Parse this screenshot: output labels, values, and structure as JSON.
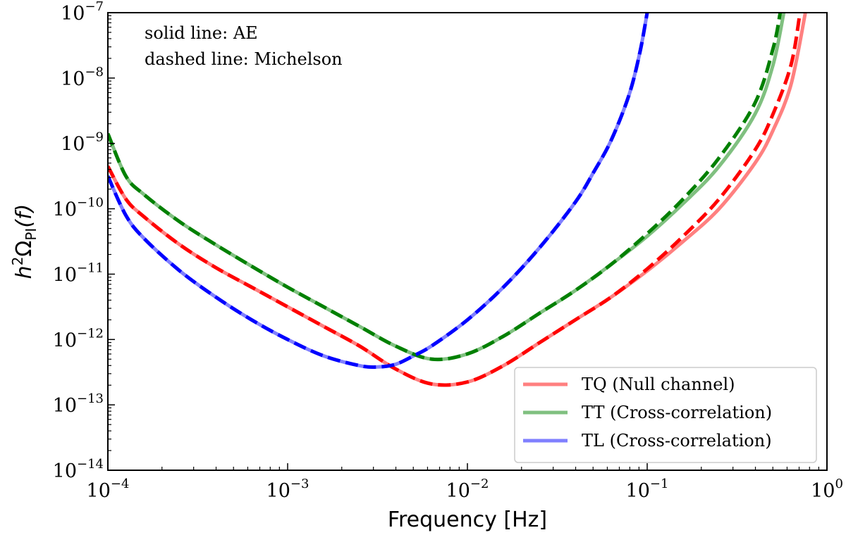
{
  "chart_data": {
    "type": "line",
    "title": "",
    "xlabel": "Frequency [Hz]",
    "ylabel": "h^2 Ω_PI(f)",
    "ylabel_parts": {
      "base": "h",
      "sup": "2",
      "omega": "Ω",
      "sub": "PI",
      "arg": "(f)"
    },
    "xscale": "log",
    "yscale": "log",
    "xlim": [
      0.0001,
      1
    ],
    "ylim": [
      1e-14,
      1e-07
    ],
    "grid": false,
    "x_ticks": [
      {
        "base": "10",
        "exp": "−4",
        "value": -4
      },
      {
        "base": "10",
        "exp": "−3",
        "value": -3
      },
      {
        "base": "10",
        "exp": "−2",
        "value": -2
      },
      {
        "base": "10",
        "exp": "−1",
        "value": -1
      },
      {
        "base": "10",
        "exp": "0",
        "value": 0
      }
    ],
    "y_ticks": [
      {
        "base": "10",
        "exp": "−7",
        "value": -7
      },
      {
        "base": "10",
        "exp": "−8",
        "value": -8
      },
      {
        "base": "10",
        "exp": "−9",
        "value": -9
      },
      {
        "base": "10",
        "exp": "−10",
        "value": -10
      },
      {
        "base": "10",
        "exp": "−11",
        "value": -11
      },
      {
        "base": "10",
        "exp": "−12",
        "value": -12
      },
      {
        "base": "10",
        "exp": "−13",
        "value": -13
      },
      {
        "base": "10",
        "exp": "−14",
        "value": -14
      }
    ],
    "annotations": [
      "solid line: AE",
      "dashed line: Michelson"
    ],
    "legend_position": "lower-right",
    "legend": [
      {
        "label": "TQ (Null channel)",
        "color": "#ff8080"
      },
      {
        "label": "TT (Cross-correlation)",
        "color": "#80c080"
      },
      {
        "label": "TL (Cross-correlation)",
        "color": "#8080ff"
      }
    ],
    "series_note": "values given as log10(f) and log10(h^2 Omega)",
    "series": [
      {
        "name": "TQ (Null channel) AE",
        "style": "solid",
        "color": "#ff8080",
        "log_x": [
          -4.0,
          -3.9,
          -3.8,
          -3.6,
          -3.4,
          -3.2,
          -3.0,
          -2.8,
          -2.6,
          -2.4,
          -2.2,
          -2.0,
          -1.8,
          -1.6,
          -1.4,
          -1.2,
          -1.0,
          -0.8,
          -0.6,
          -0.4,
          -0.3,
          -0.2,
          -0.12
        ],
        "log_y": [
          -9.35,
          -9.85,
          -10.12,
          -10.55,
          -10.9,
          -11.2,
          -11.5,
          -11.8,
          -12.1,
          -12.45,
          -12.68,
          -12.65,
          -12.4,
          -12.05,
          -11.7,
          -11.35,
          -10.95,
          -10.5,
          -10.0,
          -9.3,
          -8.8,
          -8.1,
          -7.0
        ]
      },
      {
        "name": "TQ Michelson",
        "style": "dashed",
        "color": "#ff0000",
        "log_x": [
          -4.0,
          -3.9,
          -3.8,
          -3.6,
          -3.4,
          -3.2,
          -3.0,
          -2.8,
          -2.6,
          -2.4,
          -2.2,
          -2.0,
          -1.8,
          -1.6,
          -1.4,
          -1.2,
          -1.0,
          -0.8,
          -0.6,
          -0.4,
          -0.3,
          -0.2,
          -0.15
        ],
        "log_y": [
          -9.35,
          -9.85,
          -10.12,
          -10.55,
          -10.9,
          -11.2,
          -11.5,
          -11.8,
          -12.1,
          -12.45,
          -12.68,
          -12.65,
          -12.4,
          -12.05,
          -11.7,
          -11.35,
          -10.92,
          -10.42,
          -9.85,
          -9.1,
          -8.55,
          -7.8,
          -7.0
        ]
      },
      {
        "name": "TT (Cross-correlation) AE",
        "style": "solid",
        "color": "#80c080",
        "log_x": [
          -4.0,
          -3.9,
          -3.8,
          -3.6,
          -3.4,
          -3.2,
          -3.0,
          -2.8,
          -2.6,
          -2.4,
          -2.2,
          -2.0,
          -1.8,
          -1.6,
          -1.4,
          -1.2,
          -1.0,
          -0.8,
          -0.6,
          -0.4,
          -0.3,
          -0.24
        ],
        "log_y": [
          -8.85,
          -9.5,
          -9.78,
          -10.2,
          -10.55,
          -10.88,
          -11.2,
          -11.5,
          -11.8,
          -12.1,
          -12.3,
          -12.22,
          -11.95,
          -11.6,
          -11.25,
          -10.85,
          -10.42,
          -9.92,
          -9.35,
          -8.55,
          -7.8,
          -7.0
        ]
      },
      {
        "name": "TT Michelson",
        "style": "dashed",
        "color": "#008000",
        "log_x": [
          -4.0,
          -3.9,
          -3.8,
          -3.6,
          -3.4,
          -3.2,
          -3.0,
          -2.8,
          -2.6,
          -2.4,
          -2.2,
          -2.0,
          -1.8,
          -1.6,
          -1.4,
          -1.2,
          -1.0,
          -0.8,
          -0.6,
          -0.4,
          -0.3,
          -0.26
        ],
        "log_y": [
          -8.85,
          -9.5,
          -9.78,
          -10.2,
          -10.55,
          -10.88,
          -11.2,
          -11.5,
          -11.8,
          -12.1,
          -12.3,
          -12.22,
          -11.95,
          -11.6,
          -11.25,
          -10.85,
          -10.38,
          -9.85,
          -9.22,
          -8.38,
          -7.55,
          -7.0
        ]
      },
      {
        "name": "TL (Cross-correlation) AE",
        "style": "solid",
        "color": "#8080ff",
        "log_x": [
          -4.0,
          -3.9,
          -3.8,
          -3.6,
          -3.4,
          -3.2,
          -3.0,
          -2.8,
          -2.6,
          -2.5,
          -2.4,
          -2.3,
          -2.2,
          -2.0,
          -1.8,
          -1.6,
          -1.4,
          -1.3,
          -1.2,
          -1.1,
          -1.04,
          -1.0
        ],
        "log_y": [
          -9.5,
          -10.1,
          -10.45,
          -10.95,
          -11.35,
          -11.7,
          -12.0,
          -12.25,
          -12.4,
          -12.42,
          -12.38,
          -12.25,
          -12.1,
          -11.7,
          -11.2,
          -10.6,
          -9.9,
          -9.45,
          -8.95,
          -8.25,
          -7.6,
          -7.0
        ]
      },
      {
        "name": "TL Michelson",
        "style": "dashed",
        "color": "#0000ff",
        "log_x": [
          -4.0,
          -3.9,
          -3.8,
          -3.6,
          -3.4,
          -3.2,
          -3.0,
          -2.8,
          -2.6,
          -2.5,
          -2.4,
          -2.3,
          -2.2,
          -2.0,
          -1.8,
          -1.6,
          -1.4,
          -1.3,
          -1.2,
          -1.1,
          -1.04,
          -1.0
        ],
        "log_y": [
          -9.5,
          -10.1,
          -10.45,
          -10.95,
          -11.35,
          -11.7,
          -12.0,
          -12.25,
          -12.4,
          -12.42,
          -12.38,
          -12.25,
          -12.1,
          -11.7,
          -11.2,
          -10.6,
          -9.9,
          -9.45,
          -8.95,
          -8.25,
          -7.6,
          -7.0
        ]
      }
    ]
  }
}
